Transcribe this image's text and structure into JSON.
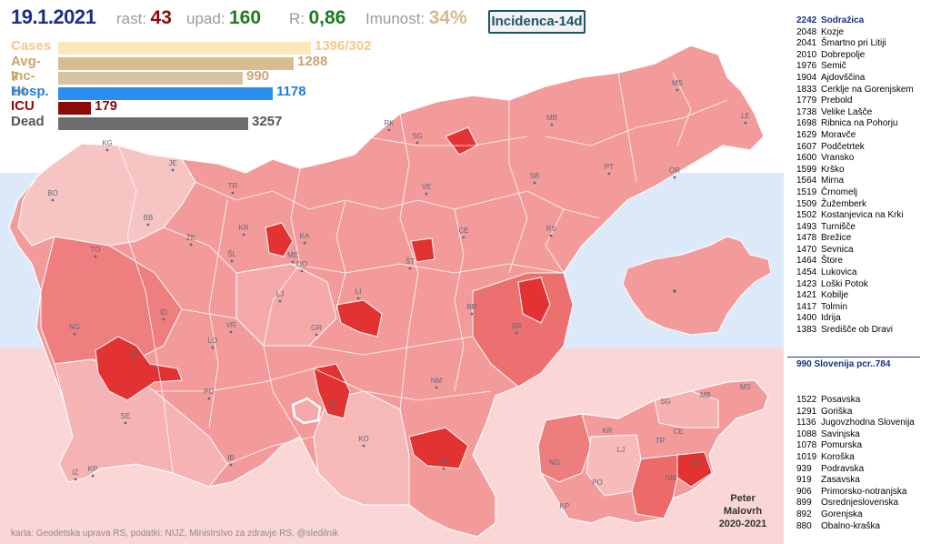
{
  "header": {
    "date": "19.1.2021",
    "rast_label": "rast:",
    "rast_value": "43",
    "upad_label": "upad:",
    "upad_value": "160",
    "r_label": "R:",
    "r_value": "0,86",
    "imunost_label": "Imunost:",
    "imunost_value": "34%",
    "badge": "Incidenca-14d"
  },
  "stats": [
    {
      "label": "Cases",
      "value": "1396/302",
      "level": 1.0,
      "color": "#fde6b8",
      "label_color": "#f3c987"
    },
    {
      "label": "Avg-7",
      "value": "1288",
      "level": 0.93,
      "color": "#d9bc90",
      "label_color": "#c9a56e"
    },
    {
      "label": "Inc-14",
      "value": "990",
      "level": 0.73,
      "color": "#d8c2a4",
      "label_color": "#c9a56e"
    },
    {
      "label": "Hosp.",
      "value": "1178",
      "level": 0.85,
      "color": "#2b8ff0",
      "label_color": "#1f7de0"
    },
    {
      "label": "ICU",
      "value": "179",
      "level": 0.13,
      "color": "#8b0a0a",
      "label_color": "#8b0a0a"
    },
    {
      "label": "Dead",
      "value": "3257",
      "level": 0.75,
      "color": "#6d6d6d",
      "label_color": "#555555"
    }
  ],
  "municipalities": [
    {
      "value": "2242",
      "name": "Sodražica",
      "highlight": true
    },
    {
      "value": "2048",
      "name": "Kozje"
    },
    {
      "value": "2041",
      "name": "Šmartno pri Litiji"
    },
    {
      "value": "2010",
      "name": "Dobrepolje"
    },
    {
      "value": "1976",
      "name": "Semič"
    },
    {
      "value": "1904",
      "name": "Ajdovščina"
    },
    {
      "value": "1833",
      "name": "Cerklje na Gorenjskem"
    },
    {
      "value": "1779",
      "name": "Prebold"
    },
    {
      "value": "1738",
      "name": "Velike Lašče"
    },
    {
      "value": "1698",
      "name": "Ribnica na Pohorju"
    },
    {
      "value": "1629",
      "name": "Moravče"
    },
    {
      "value": "1607",
      "name": "Podčetrtek"
    },
    {
      "value": "1600",
      "name": "Vransko"
    },
    {
      "value": "1599",
      "name": "Krško"
    },
    {
      "value": "1564",
      "name": "Mirna"
    },
    {
      "value": "1519",
      "name": "Črnomelj"
    },
    {
      "value": "1509",
      "name": "Žužemberk"
    },
    {
      "value": "1502",
      "name": "Kostanjevica na Krki"
    },
    {
      "value": "1493",
      "name": "Turnišče"
    },
    {
      "value": "1478",
      "name": "Brežice"
    },
    {
      "value": "1470",
      "name": "Sevnica"
    },
    {
      "value": "1464",
      "name": "Štore"
    },
    {
      "value": "1454",
      "name": "Lukovica"
    },
    {
      "value": "1423",
      "name": "Loški Potok"
    },
    {
      "value": "1421",
      "name": "Kobilje"
    },
    {
      "value": "1417",
      "name": "Tolmin"
    },
    {
      "value": "1400",
      "name": "Idrija"
    },
    {
      "value": "1383",
      "name": "Središče ob Dravi"
    }
  ],
  "slovenia_line": "990   Slovenija  pcr..784",
  "regions": [
    {
      "value": "1522",
      "name": "Posavska"
    },
    {
      "value": "1291",
      "name": "Goriška"
    },
    {
      "value": "1136",
      "name": "Jugovzhodna Slovenija"
    },
    {
      "value": "1088",
      "name": "Savinjska"
    },
    {
      "value": "1078",
      "name": "Pomurska"
    },
    {
      "value": "1019",
      "name": "Koroška"
    },
    {
      "value": "939",
      "name": "Podravska"
    },
    {
      "value": "919",
      "name": "Zasavska"
    },
    {
      "value": "906",
      "name": "Primorsko-notranjska"
    },
    {
      "value": "899",
      "name": "Osrednjeslovenska"
    },
    {
      "value": "892",
      "name": "Gorenjska"
    },
    {
      "value": "880",
      "name": "Obalno-kraška"
    }
  ],
  "map_labels": [
    "KG",
    "JE",
    "BO",
    "TR",
    "KR",
    "BB",
    "ŽE",
    "ŠL",
    "KA",
    "ME",
    "DO",
    "LJ",
    "LI",
    "TO",
    "ID",
    "AJ",
    "NG",
    "VR",
    "LO",
    "GR",
    "PO",
    "SE",
    "KO",
    "RI",
    "NM",
    "KK",
    "IZ",
    "KP",
    "IB",
    "RK",
    "SG",
    "MB",
    "PT",
    "OR",
    "MS",
    "LE",
    "VE",
    "SB",
    "CE",
    "RS",
    "ŠT",
    "BR",
    "SR"
  ],
  "regional_labels": [
    "SG",
    "MB",
    "MS",
    "KR",
    "CE",
    "TR",
    "LJ",
    "NG",
    "PO",
    "NM",
    "KK",
    "KP"
  ],
  "author": {
    "line1": "Peter",
    "line2": "Malovrh",
    "line3": "2020-2021"
  },
  "credit": "karta: Geodetska uprava RS,  podatki: NIJZ, Ministrstvo za zdravje RS, @sledilnik",
  "colors": {
    "accent": "#1a2f8a",
    "map_base": "#f39b9b",
    "map_hot": "#e33232"
  }
}
